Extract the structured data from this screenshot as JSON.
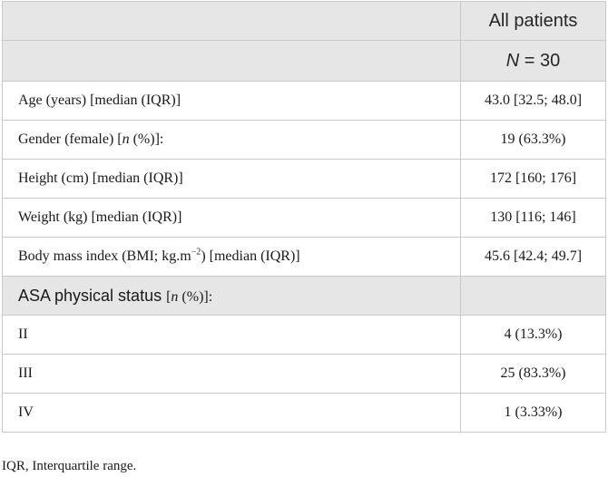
{
  "header": {
    "group_label": "All patients",
    "n_symbol": "N",
    "n_equals": " = 30"
  },
  "rows": [
    {
      "label": "Age (years) [median (IQR)]",
      "value": "43.0 [32.5; 48.0]"
    },
    {
      "label_pre": "Gender (female) [",
      "label_n": "n",
      "label_post": " (%)]:",
      "value": "19 (63.3%)"
    },
    {
      "label": "Height (cm) [median (IQR)]",
      "value": "172 [160; 176]"
    },
    {
      "label": "Weight (kg) [median (IQR)]",
      "value": "130 [116; 146]"
    },
    {
      "label_pre": "Body mass index (BMI; kg.m",
      "label_sup": "−2",
      "label_post": ") [median (IQR)]",
      "value": "45.6 [42.4; 49.7]"
    }
  ],
  "section": {
    "label": "ASA physical status ",
    "label_bracket_pre": "[",
    "label_n": "n",
    "label_bracket_post": " (%)]:"
  },
  "asa_rows": [
    {
      "label": "II",
      "value": "4 (13.3%)"
    },
    {
      "label": "III",
      "value": "25 (83.3%)"
    },
    {
      "label": "IV",
      "value": "1 (3.33%)"
    }
  ],
  "footnote": "IQR, Interquartile range."
}
